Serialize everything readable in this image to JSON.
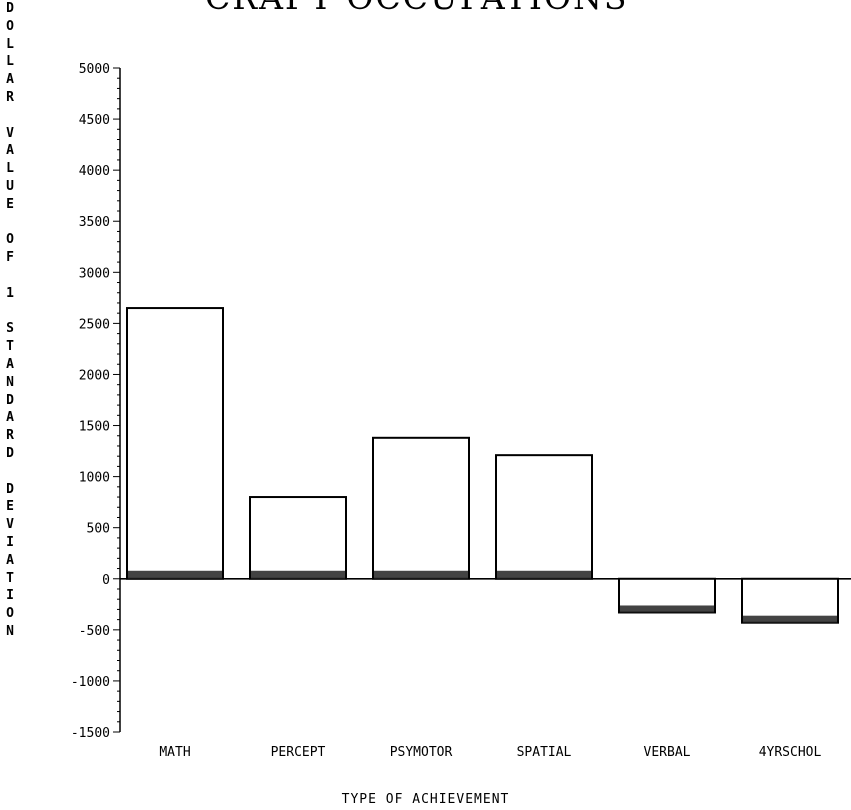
{
  "chart_data": {
    "type": "bar",
    "title": "CRAFT OCCUPATIONS",
    "ylabel": "DOLLAR VALUE OF 1 STANDARD DEVIATION",
    "xlabel": "TYPE OF ACHIEVEMENT",
    "categories": [
      "MATH",
      "PERCEPT",
      "PSYMOTOR",
      "SPATIAL",
      "VERBAL",
      "4YRSCHOL"
    ],
    "values": [
      2650,
      800,
      1380,
      1210,
      -330,
      -430
    ],
    "ylim": [
      -1500,
      5000
    ],
    "yticks": [
      "5000",
      "4500",
      "4000",
      "3500",
      "3000",
      "2500",
      "2000",
      "1500",
      "1000",
      "500",
      "0",
      "-500",
      "-1000",
      "-1500"
    ],
    "grid": false,
    "legend": "none"
  }
}
